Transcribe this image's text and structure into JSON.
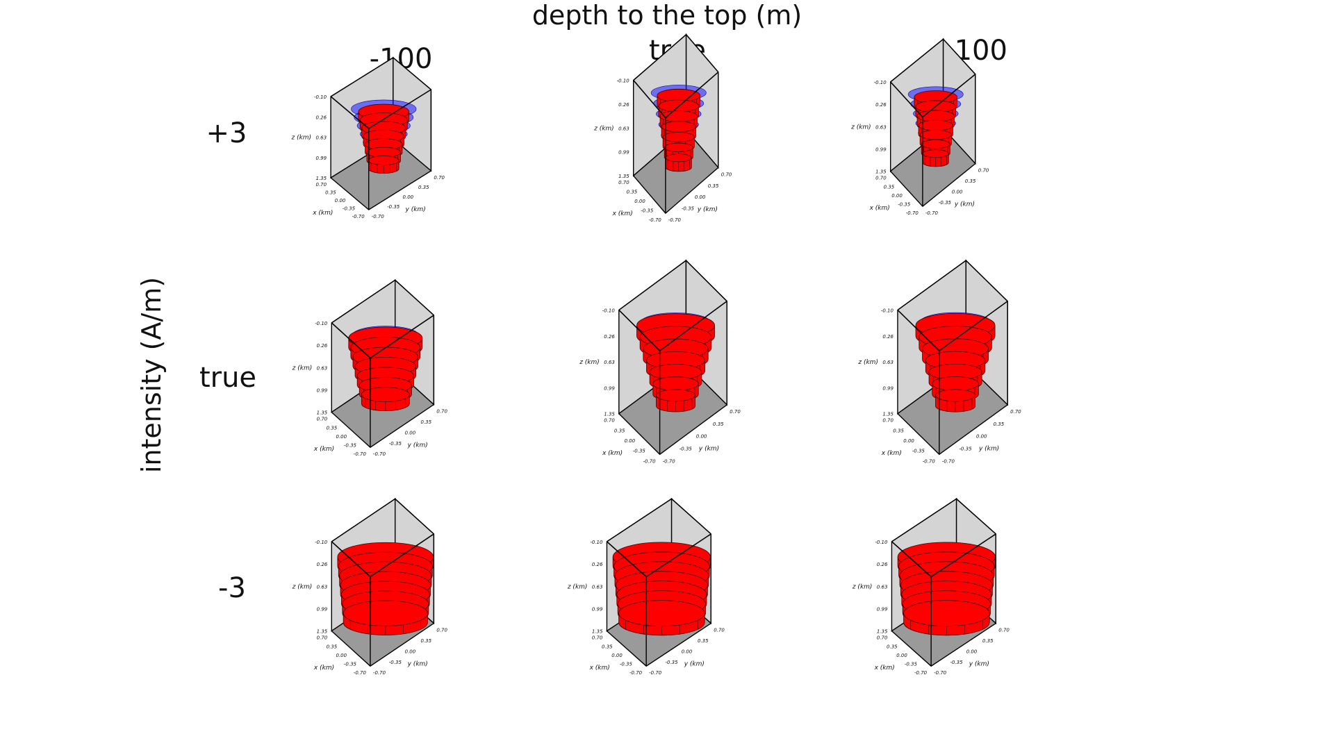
{
  "figure": {
    "title": "depth to the top (m)",
    "row_axis_label": "intensity (A/m)",
    "columns": [
      "-100",
      "true",
      "+100"
    ],
    "rows": [
      "+3",
      "true",
      "-3"
    ]
  },
  "axes": {
    "z_label": "z (km)",
    "x_label": "x (km)",
    "y_label": "y (km)",
    "z_ticks": [
      "-0.10",
      "0.26",
      "0.63",
      "0.99",
      "1.35"
    ],
    "x_ticks": [
      "0.70",
      "0.35",
      "0.00",
      "-0.35",
      "-0.70"
    ],
    "y_ticks": [
      "-0.70",
      "-0.35",
      "0.00",
      "0.35",
      "0.70"
    ]
  },
  "colors": {
    "estimated_body": "#ff0000",
    "true_body": "#1a1aff",
    "floor": "#9a9a9a",
    "back_wall": "#d4d4d4"
  },
  "panels": [
    {
      "row": "+3",
      "column": "-100",
      "estimated_shape": "scattered"
    },
    {
      "row": "+3",
      "column": "true",
      "estimated_shape": "scattered"
    },
    {
      "row": "+3",
      "column": "+100",
      "estimated_shape": "partial"
    },
    {
      "row": "true",
      "column": "-100",
      "estimated_shape": "irregular"
    },
    {
      "row": "true",
      "column": "true",
      "estimated_shape": "matching"
    },
    {
      "row": "true",
      "column": "+100",
      "estimated_shape": "matching"
    },
    {
      "row": "-3",
      "column": "-100",
      "estimated_shape": "bulky"
    },
    {
      "row": "-3",
      "column": "true",
      "estimated_shape": "bulky"
    },
    {
      "row": "-3",
      "column": "+100",
      "estimated_shape": "bulky"
    }
  ]
}
